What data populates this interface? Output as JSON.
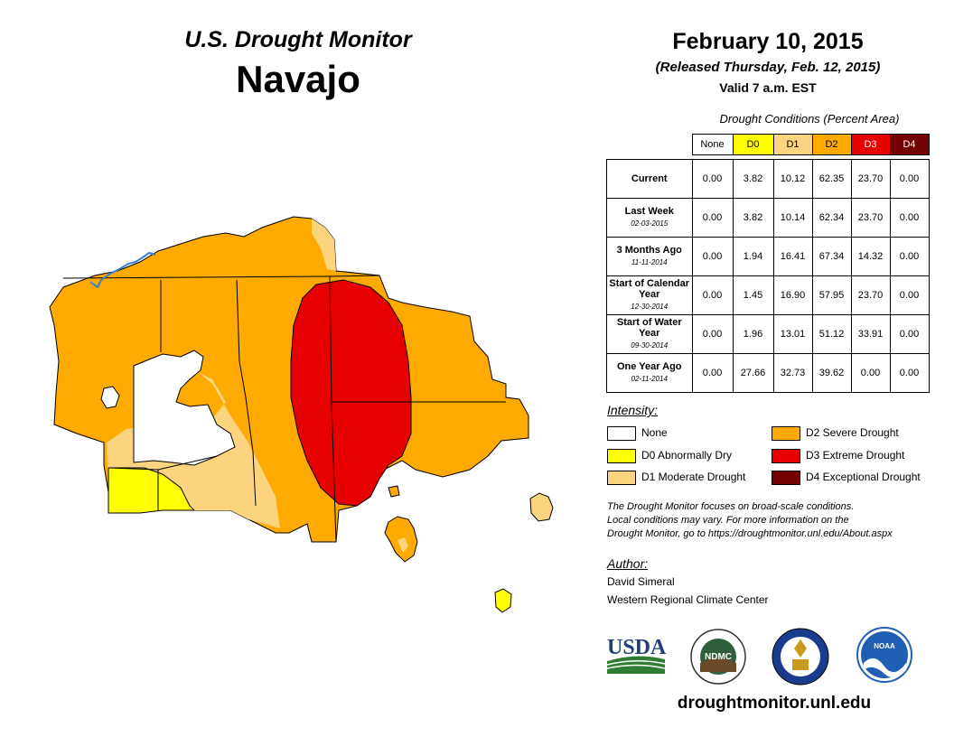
{
  "header": {
    "title_line1": "U.S. Drought Monitor",
    "title_line2": "Navajo",
    "date": "February 10, 2015",
    "released": "(Released Thursday, Feb. 12, 2015)",
    "valid": "Valid 7 a.m. EST"
  },
  "conditions": {
    "title": "Drought Conditions (Percent Area)",
    "columns": [
      {
        "label": "None",
        "color": "#ffffff",
        "text_color": "#000000"
      },
      {
        "label": "D0",
        "color": "#ffff00",
        "text_color": "#000000"
      },
      {
        "label": "D1",
        "color": "#fcd37f",
        "text_color": "#000000"
      },
      {
        "label": "D2",
        "color": "#ffaa00",
        "text_color": "#000000"
      },
      {
        "label": "D3",
        "color": "#e60000",
        "text_color": "#ffffff"
      },
      {
        "label": "D4",
        "color": "#730000",
        "text_color": "#ffffff"
      }
    ],
    "rows": [
      {
        "label": "Current",
        "sub": "",
        "values": [
          "0.00",
          "3.82",
          "10.12",
          "62.35",
          "23.70",
          "0.00"
        ]
      },
      {
        "label": "Last Week",
        "sub": "02-03-2015",
        "values": [
          "0.00",
          "3.82",
          "10.14",
          "62.34",
          "23.70",
          "0.00"
        ]
      },
      {
        "label": "3 Months Ago",
        "sub": "11-11-2014",
        "values": [
          "0.00",
          "1.94",
          "16.41",
          "67.34",
          "14.32",
          "0.00"
        ]
      },
      {
        "label": "Start of Calendar Year",
        "sub": "12-30-2014",
        "values": [
          "0.00",
          "1.45",
          "16.90",
          "57.95",
          "23.70",
          "0.00"
        ]
      },
      {
        "label": "Start of Water Year",
        "sub": "09-30-2014",
        "values": [
          "0.00",
          "1.96",
          "13.01",
          "51.12",
          "33.91",
          "0.00"
        ]
      },
      {
        "label": "One Year Ago",
        "sub": "02-11-2014",
        "values": [
          "0.00",
          "27.66",
          "32.73",
          "39.62",
          "0.00",
          "0.00"
        ]
      }
    ]
  },
  "legend": {
    "title": "Intensity:",
    "items": [
      {
        "label": "None",
        "color": "#ffffff"
      },
      {
        "label": "D0 Abnormally Dry",
        "color": "#ffff00"
      },
      {
        "label": "D1 Moderate Drought",
        "color": "#fcd37f"
      },
      {
        "label": "D2 Severe Drought",
        "color": "#ffaa00"
      },
      {
        "label": "D3 Extreme Drought",
        "color": "#e60000"
      },
      {
        "label": "D4 Exceptional Drought",
        "color": "#730000"
      }
    ]
  },
  "disclaimer": {
    "line1": "The Drought Monitor focuses on broad-scale conditions.",
    "line2": "Local conditions may vary. For more information on the",
    "line3": "Drought Monitor, go to https://droughtmonitor.unl.edu/About.aspx"
  },
  "author": {
    "title": "Author:",
    "name": "David Simeral",
    "org": "Western Regional Climate Center"
  },
  "logos": {
    "usda": "USDA",
    "ndmc": "NDMC",
    "noaa": "NOAA"
  },
  "website": "droughtmonitor.unl.edu",
  "colors": {
    "d2": "#ffaa00",
    "d3": "#e60000",
    "d1": "#fcd37f",
    "d0": "#ffff00",
    "water": "#3a7fd5"
  }
}
